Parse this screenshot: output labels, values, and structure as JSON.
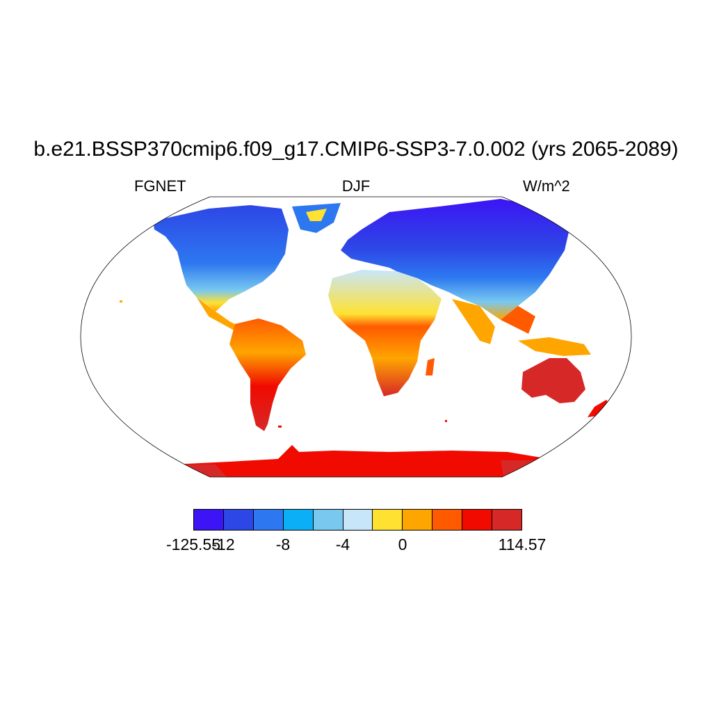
{
  "title": "b.e21.BSSP370cmip6.f09_g17.CMIP6-SSP3-7.0.002 (yrs 2065-2089)",
  "variable": "FGNET",
  "season": "DJF",
  "units": "W/m^2",
  "colorbar": {
    "colors": [
      "#3c14f5",
      "#2d46e6",
      "#2d78f0",
      "#0aaff5",
      "#78c8f0",
      "#c8e6fa",
      "#ffe132",
      "#ffa500",
      "#ff5a00",
      "#f00a00",
      "#d72828"
    ],
    "labels": [
      "-125.55",
      "-12",
      "-8",
      "-4",
      "0",
      "114.57"
    ]
  }
}
